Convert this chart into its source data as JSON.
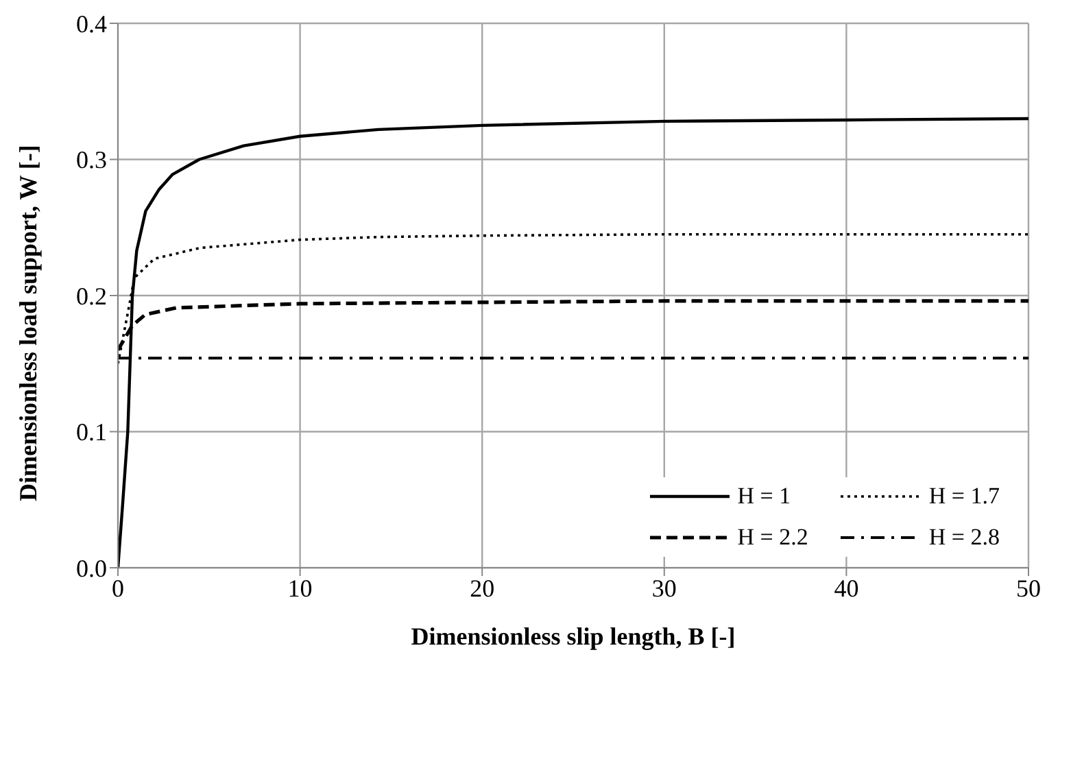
{
  "chart_data": {
    "type": "line",
    "xlabel": "Dimensionless slip length, B [-]",
    "ylabel": "Dimensionless load support, W [-]",
    "xlim": [
      0,
      50
    ],
    "xticks": [
      0,
      10,
      20,
      30,
      40,
      50
    ],
    "ylim": [
      0,
      0.4
    ],
    "yticks": [
      {
        "value": 0,
        "label": "0.0"
      },
      0.1,
      0.2,
      0.3,
      0.4
    ],
    "grid": true,
    "legend": "bottom right",
    "marker": "none",
    "series": [
      {
        "name": "H = 1",
        "color": "#000000",
        "line_style": "solid",
        "x": [
          0,
          0.25,
          0.54,
          0.79,
          1.03,
          1.52,
          2.26,
          3,
          4.47,
          6.9,
          10,
          14.3,
          20,
          30,
          40,
          50
        ],
        "values": [
          0,
          0.045,
          0.1,
          0.199,
          0.233,
          0.262,
          0.278,
          0.289,
          0.3,
          0.31,
          0.317,
          0.322,
          0.325,
          0.328,
          0.329,
          0.33
        ]
      },
      {
        "name": "H = 1.7",
        "color": "#000000",
        "line_style": "dotted",
        "x": [
          0,
          0.54,
          0.9,
          2,
          4.5,
          10,
          14.3,
          20,
          30,
          40,
          50
        ],
        "values": [
          0.15,
          0.187,
          0.213,
          0.227,
          0.235,
          0.241,
          0.243,
          0.244,
          0.245,
          0.245,
          0.245
        ]
      },
      {
        "name": "H = 2.2",
        "color": "#000000",
        "line_style": "dashed",
        "x": [
          0,
          0.79,
          1.5,
          3.2,
          10,
          20,
          30,
          40,
          50
        ],
        "values": [
          0.16,
          0.178,
          0.186,
          0.191,
          0.194,
          0.195,
          0.196,
          0.196,
          0.196
        ]
      },
      {
        "name": "H = 2.8",
        "color": "#000000",
        "line_style": "dashdot",
        "x": [
          0,
          10,
          20,
          30,
          40,
          50
        ],
        "values": [
          0.154,
          0.154,
          0.154,
          0.154,
          0.154,
          0.154
        ]
      }
    ]
  }
}
